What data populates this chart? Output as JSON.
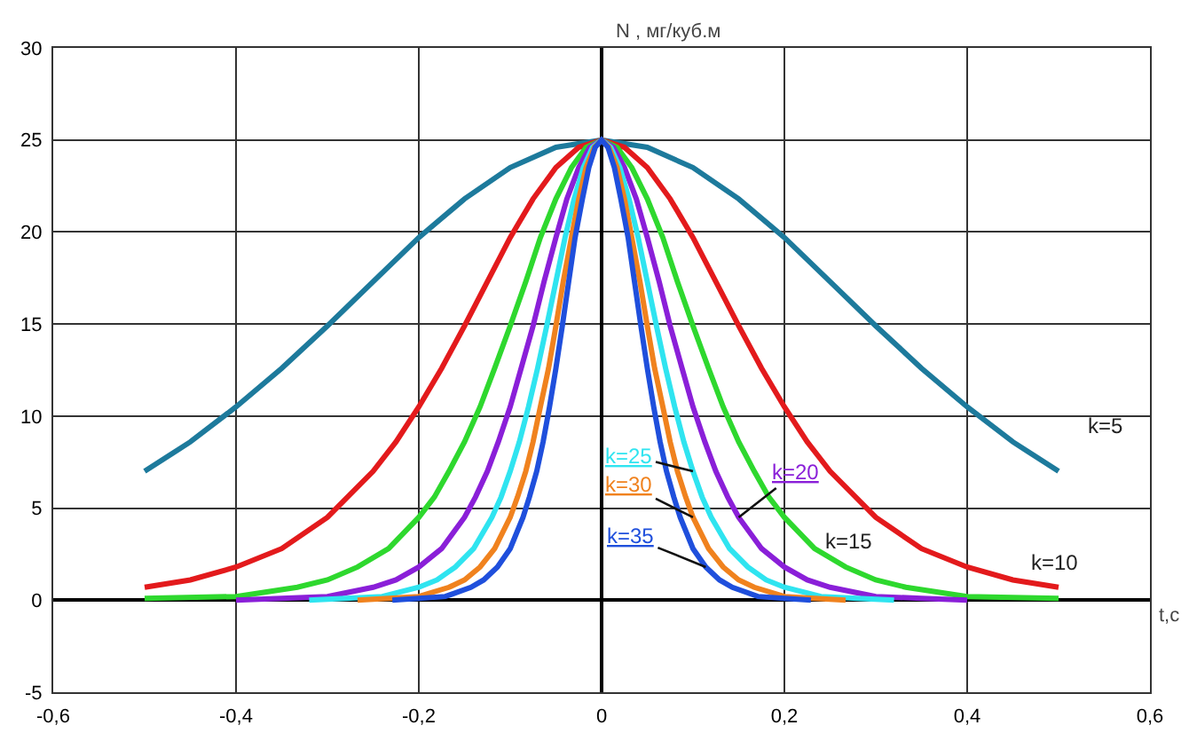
{
  "chart_data": {
    "type": "line",
    "xlabel": "t,c",
    "ylabel": "N , мг/куб.м",
    "xlim": [
      -0.6,
      0.6
    ],
    "ylim": [
      -5,
      30
    ],
    "xticks": [
      {
        "value": -0.6,
        "label": "-0,6"
      },
      {
        "value": -0.4,
        "label": "-0,4"
      },
      {
        "value": -0.2,
        "label": "-0,2"
      },
      0,
      {
        "value": 0.2,
        "label": "0,2"
      },
      {
        "value": 0.4,
        "label": "0,4"
      },
      {
        "value": 0.6,
        "label": "0,6"
      }
    ],
    "yticks": [
      -5,
      0,
      5,
      10,
      15,
      20,
      25,
      30
    ],
    "grid": true,
    "legend": false,
    "marker": "none",
    "line_style": "solid",
    "series": [
      {
        "name": "k=5",
        "color": "#1d7a9c",
        "x": [
          -0.5,
          -0.45,
          -0.4,
          -0.35,
          -0.3,
          -0.25,
          -0.2,
          -0.15,
          -0.1,
          -0.05,
          0,
          0.05,
          0.1,
          0.15,
          0.2,
          0.25,
          0.3,
          0.35,
          0.4,
          0.45,
          0.5
        ],
        "values": [
          7.0,
          8.6,
          10.5,
          12.6,
          14.9,
          17.3,
          19.7,
          21.8,
          23.5,
          24.6,
          25,
          24.6,
          23.5,
          21.8,
          19.7,
          17.3,
          14.9,
          12.6,
          10.5,
          8.6,
          7.0
        ]
      },
      {
        "name": "k=10",
        "color": "#e31a1c",
        "x": [
          -0.5,
          -0.45,
          -0.4,
          -0.35,
          -0.3,
          -0.25,
          -0.225,
          -0.2,
          -0.175,
          -0.15,
          -0.125,
          -0.1,
          -0.075,
          -0.05,
          -0.025,
          0,
          0.025,
          0.05,
          0.075,
          0.1,
          0.125,
          0.15,
          0.175,
          0.2,
          0.225,
          0.25,
          0.3,
          0.35,
          0.4,
          0.45,
          0.5
        ],
        "values": [
          0.7,
          1.1,
          1.8,
          2.8,
          4.5,
          7.0,
          8.6,
          10.5,
          12.6,
          14.9,
          17.3,
          19.7,
          21.8,
          23.5,
          24.6,
          25,
          24.6,
          23.5,
          21.8,
          19.7,
          17.3,
          14.9,
          12.6,
          10.5,
          8.6,
          7.0,
          4.5,
          2.8,
          1.8,
          1.1,
          0.7
        ]
      },
      {
        "name": "k=15",
        "color": "#2ed82e",
        "x": [
          -0.5,
          -0.4,
          -0.333,
          -0.3,
          -0.267,
          -0.233,
          -0.2,
          -0.183,
          -0.167,
          -0.15,
          -0.133,
          -0.117,
          -0.1,
          -0.083,
          -0.067,
          -0.05,
          -0.033,
          -0.017,
          0,
          0.017,
          0.033,
          0.05,
          0.067,
          0.083,
          0.1,
          0.117,
          0.133,
          0.15,
          0.167,
          0.183,
          0.2,
          0.233,
          0.267,
          0.3,
          0.333,
          0.4,
          0.5
        ],
        "values": [
          0.1,
          0.2,
          0.7,
          1.1,
          1.8,
          2.8,
          4.5,
          5.6,
          7.0,
          8.6,
          10.5,
          12.6,
          14.9,
          17.3,
          19.7,
          21.8,
          23.5,
          24.6,
          25,
          24.6,
          23.5,
          21.8,
          19.7,
          17.3,
          14.9,
          12.6,
          10.5,
          8.6,
          7.0,
          5.6,
          4.5,
          2.8,
          1.8,
          1.1,
          0.7,
          0.2,
          0.1
        ]
      },
      {
        "name": "k=20",
        "color": "#8a1fd8",
        "x": [
          -0.4,
          -0.35,
          -0.3,
          -0.25,
          -0.225,
          -0.2,
          -0.175,
          -0.15,
          -0.138,
          -0.125,
          -0.113,
          -0.1,
          -0.088,
          -0.075,
          -0.063,
          -0.05,
          -0.038,
          -0.025,
          -0.013,
          0,
          0.013,
          0.025,
          0.038,
          0.05,
          0.063,
          0.075,
          0.088,
          0.1,
          0.113,
          0.125,
          0.138,
          0.15,
          0.175,
          0.2,
          0.225,
          0.25,
          0.3,
          0.35,
          0.4
        ],
        "values": [
          0.0,
          0.1,
          0.2,
          0.7,
          1.1,
          1.8,
          2.8,
          4.5,
          5.6,
          7.0,
          8.6,
          10.5,
          12.6,
          14.9,
          17.3,
          19.7,
          21.8,
          23.5,
          24.6,
          25,
          24.6,
          23.5,
          21.8,
          19.7,
          17.3,
          14.9,
          12.6,
          10.5,
          8.6,
          7.0,
          5.6,
          4.5,
          2.8,
          1.8,
          1.1,
          0.7,
          0.2,
          0.1,
          0.0
        ]
      },
      {
        "name": "k=25",
        "color": "#2fe4f0",
        "x": [
          -0.32,
          -0.28,
          -0.24,
          -0.2,
          -0.18,
          -0.16,
          -0.14,
          -0.12,
          -0.11,
          -0.1,
          -0.09,
          -0.08,
          -0.07,
          -0.06,
          -0.05,
          -0.04,
          -0.03,
          -0.02,
          -0.01,
          0,
          0.01,
          0.02,
          0.03,
          0.04,
          0.05,
          0.06,
          0.07,
          0.08,
          0.09,
          0.1,
          0.11,
          0.12,
          0.14,
          0.16,
          0.18,
          0.2,
          0.24,
          0.28,
          0.32
        ],
        "values": [
          0.0,
          0.1,
          0.2,
          0.7,
          1.1,
          1.8,
          2.8,
          4.5,
          5.6,
          7.0,
          8.6,
          10.5,
          12.6,
          14.9,
          17.3,
          19.7,
          21.8,
          23.5,
          24.6,
          25,
          24.6,
          23.5,
          21.8,
          19.7,
          17.3,
          14.9,
          12.6,
          10.5,
          8.6,
          7.0,
          5.6,
          4.5,
          2.8,
          1.8,
          1.1,
          0.7,
          0.2,
          0.1,
          0.0
        ]
      },
      {
        "name": "k=30",
        "color": "#f0821e",
        "x": [
          -0.267,
          -0.233,
          -0.2,
          -0.167,
          -0.15,
          -0.133,
          -0.117,
          -0.1,
          -0.092,
          -0.083,
          -0.075,
          -0.067,
          -0.058,
          -0.05,
          -0.042,
          -0.033,
          -0.025,
          -0.017,
          -0.008,
          0,
          0.008,
          0.017,
          0.025,
          0.033,
          0.042,
          0.05,
          0.058,
          0.067,
          0.075,
          0.083,
          0.092,
          0.1,
          0.117,
          0.133,
          0.15,
          0.167,
          0.2,
          0.233,
          0.267
        ],
        "values": [
          0.0,
          0.1,
          0.2,
          0.7,
          1.1,
          1.8,
          2.8,
          4.5,
          5.6,
          7.0,
          8.6,
          10.5,
          12.6,
          14.9,
          17.3,
          19.7,
          21.8,
          23.5,
          24.6,
          25,
          24.6,
          23.5,
          21.8,
          19.7,
          17.3,
          14.9,
          12.6,
          10.5,
          8.6,
          7.0,
          5.6,
          4.5,
          2.8,
          1.8,
          1.1,
          0.7,
          0.2,
          0.1,
          0.0
        ]
      },
      {
        "name": "k=35",
        "color": "#1f4fdc",
        "x": [
          -0.229,
          -0.2,
          -0.171,
          -0.143,
          -0.129,
          -0.114,
          -0.1,
          -0.086,
          -0.079,
          -0.071,
          -0.064,
          -0.057,
          -0.05,
          -0.043,
          -0.036,
          -0.029,
          -0.021,
          -0.014,
          -0.007,
          0,
          0.007,
          0.014,
          0.021,
          0.029,
          0.036,
          0.043,
          0.05,
          0.057,
          0.064,
          0.071,
          0.079,
          0.086,
          0.1,
          0.114,
          0.129,
          0.143,
          0.171,
          0.2,
          0.229
        ],
        "values": [
          0.0,
          0.1,
          0.2,
          0.7,
          1.1,
          1.8,
          2.8,
          4.5,
          5.6,
          7.0,
          8.6,
          10.5,
          12.6,
          14.9,
          17.3,
          19.7,
          21.8,
          23.5,
          24.6,
          25,
          24.6,
          23.5,
          21.8,
          19.7,
          17.3,
          14.9,
          12.6,
          10.5,
          8.6,
          7.0,
          5.6,
          4.5,
          2.8,
          1.8,
          1.1,
          0.7,
          0.2,
          0.1,
          0.0
        ]
      }
    ]
  }
}
